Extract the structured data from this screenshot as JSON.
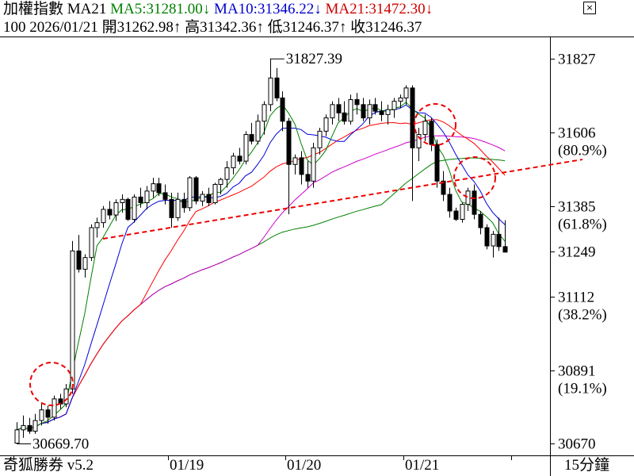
{
  "header": {
    "title": "加權指數",
    "ma_label": "MA21",
    "ma5": {
      "label": "MA5:31281.00",
      "arrow": "↓",
      "color": "#008000"
    },
    "ma10": {
      "label": "MA10:31346.22",
      "arrow": "↓",
      "color": "#0000cc"
    },
    "ma21": {
      "label": "MA21:31472.30",
      "arrow": "↓",
      "color": "#cc0000"
    },
    "info": {
      "count": "100",
      "date": "2026/01/21",
      "open": "開31262.98",
      "open_arrow": "↑",
      "high": "高31342.36",
      "high_arrow": "↑",
      "low": "低31246.37",
      "low_arrow": "↑",
      "close": "收31246.37"
    },
    "close_button": "×"
  },
  "footer": {
    "brand": "奇狐勝券 v5.2",
    "period": "15分鐘"
  },
  "chart_data": {
    "type": "candlestick",
    "ylim": [
      30640,
      31890
    ],
    "y_ticks": [
      {
        "value": 31827,
        "label": "31827",
        "sub": ""
      },
      {
        "value": 31606,
        "label": "31606",
        "sub": "(80.9%)"
      },
      {
        "value": 31385,
        "label": "31385",
        "sub": "(61.8%)"
      },
      {
        "value": 31249,
        "label": "31249",
        "sub": ""
      },
      {
        "value": 31112,
        "label": "31112",
        "sub": "(38.2%)"
      },
      {
        "value": 30891,
        "label": "30891",
        "sub": "(19.1%)"
      },
      {
        "value": 30670,
        "label": "30670",
        "sub": ""
      }
    ],
    "x_ticks": [
      "01/19",
      "01/20",
      "01/21"
    ],
    "annotations": [
      {
        "label": "31827.39",
        "value": 31827.39
      },
      {
        "label": "30669.70",
        "value": 30669.7
      }
    ],
    "candles": [
      [
        30672,
        30735,
        30669.7,
        30712
      ],
      [
        30712,
        30755,
        30688,
        30725
      ],
      [
        30725,
        30748,
        30700,
        30708
      ],
      [
        30708,
        30760,
        30700,
        30740
      ],
      [
        30740,
        30790,
        30725,
        30772
      ],
      [
        30772,
        30785,
        30730,
        30750
      ],
      [
        30750,
        30815,
        30740,
        30805
      ],
      [
        30805,
        30820,
        30775,
        30790
      ],
      [
        30790,
        30850,
        30780,
        30835
      ],
      [
        30835,
        31280,
        30820,
        31250
      ],
      [
        31250,
        31298,
        31185,
        31195
      ],
      [
        31195,
        31240,
        31170,
        31230
      ],
      [
        31230,
        31330,
        31220,
        31320
      ],
      [
        31320,
        31350,
        31290,
        31335
      ],
      [
        31335,
        31385,
        31320,
        31375
      ],
      [
        31375,
        31400,
        31345,
        31358
      ],
      [
        31358,
        31405,
        31340,
        31395
      ],
      [
        31395,
        31420,
        31365,
        31405
      ],
      [
        31405,
        31410,
        31340,
        31345
      ],
      [
        31345,
        31420,
        31335,
        31412
      ],
      [
        31412,
        31440,
        31380,
        31395
      ],
      [
        31395,
        31445,
        31375,
        31430
      ],
      [
        31430,
        31470,
        31410,
        31452
      ],
      [
        31452,
        31470,
        31415,
        31425
      ],
      [
        31425,
        31450,
        31390,
        31405
      ],
      [
        31405,
        31425,
        31320,
        31350
      ],
      [
        31350,
        31425,
        31340,
        31405
      ],
      [
        31405,
        31425,
        31365,
        31380
      ],
      [
        31380,
        31475,
        31370,
        31470
      ],
      [
        31470,
        31475,
        31390,
        31400
      ],
      [
        31400,
        31430,
        31385,
        31420
      ],
      [
        31420,
        31440,
        31385,
        31395
      ],
      [
        31395,
        31455,
        31390,
        31450
      ],
      [
        31450,
        31470,
        31420,
        31465
      ],
      [
        31465,
        31520,
        31440,
        31500
      ],
      [
        31500,
        31545,
        31480,
        31535
      ],
      [
        31535,
        31560,
        31510,
        31520
      ],
      [
        31520,
        31610,
        31510,
        31600
      ],
      [
        31600,
        31635,
        31570,
        31580
      ],
      [
        31580,
        31660,
        31570,
        31640
      ],
      [
        31640,
        31700,
        31600,
        31690
      ],
      [
        31690,
        31827.39,
        31670,
        31770
      ],
      [
        31770,
        31800,
        31700,
        31710
      ],
      [
        31710,
        31730,
        31610,
        31640
      ],
      [
        31640,
        31650,
        31360,
        31510
      ],
      [
        31510,
        31540,
        31480,
        31530
      ],
      [
        31530,
        31550,
        31450,
        31480
      ],
      [
        31480,
        31520,
        31440,
        31460
      ],
      [
        31460,
        31575,
        31440,
        31560
      ],
      [
        31560,
        31620,
        31540,
        31610
      ],
      [
        31610,
        31660,
        31595,
        31650
      ],
      [
        31650,
        31700,
        31630,
        31690
      ],
      [
        31690,
        31710,
        31640,
        31665
      ],
      [
        31665,
        31700,
        31630,
        31640
      ],
      [
        31640,
        31720,
        31630,
        31705
      ],
      [
        31705,
        31725,
        31660,
        31690
      ],
      [
        31690,
        31710,
        31640,
        31650
      ],
      [
        31650,
        31705,
        31630,
        31690
      ],
      [
        31690,
        31710,
        31660,
        31670
      ],
      [
        31670,
        31700,
        31640,
        31660
      ],
      [
        31660,
        31690,
        31630,
        31675
      ],
      [
        31675,
        31710,
        31650,
        31700
      ],
      [
        31700,
        31720,
        31680,
        31710
      ],
      [
        31710,
        31748,
        31690,
        31740
      ],
      [
        31740,
        31748,
        31400,
        31560
      ],
      [
        31560,
        31620,
        31520,
        31600
      ],
      [
        31600,
        31660,
        31580,
        31640
      ],
      [
        31640,
        31650,
        31550,
        31570
      ],
      [
        31570,
        31585,
        31440,
        31460
      ],
      [
        31460,
        31490,
        31400,
        31420
      ],
      [
        31420,
        31440,
        31350,
        31370
      ],
      [
        31370,
        31380,
        31340,
        31345
      ],
      [
        31345,
        31395,
        31335,
        31390
      ],
      [
        31390,
        31440,
        31370,
        31430
      ],
      [
        31430,
        31450,
        31345,
        31360
      ],
      [
        31360,
        31370,
        31300,
        31320
      ],
      [
        31320,
        31330,
        31255,
        31265
      ],
      [
        31265,
        31310,
        31230,
        31300
      ],
      [
        31300,
        31350,
        31250,
        31262.98
      ],
      [
        31262.98,
        31342.36,
        31246.37,
        31246.37
      ]
    ]
  }
}
